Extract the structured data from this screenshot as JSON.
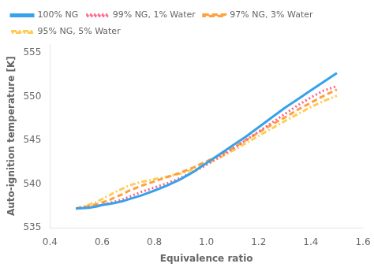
{
  "chart_data": {
    "type": "line",
    "xlabel": "Equivalence ratio",
    "ylabel": "Auto-ignition temperature [K]",
    "xlim": [
      0.4,
      1.6
    ],
    "ylim": [
      535,
      556
    ],
    "xticks": [
      0.4,
      0.6,
      0.8,
      {
        "value": 1.0,
        "label": "1.0"
      },
      1.2,
      1.4,
      1.6
    ],
    "yticks": [
      535,
      540,
      545,
      550,
      555
    ],
    "grid": false,
    "legend": "upper left",
    "x": [
      0.5,
      0.52,
      0.55,
      0.58,
      0.6,
      0.63,
      0.65,
      0.68,
      0.7,
      0.75,
      0.8,
      0.85,
      0.9,
      0.95,
      1.0,
      1.05,
      1.1,
      1.15,
      1.2,
      1.25,
      1.3,
      1.35,
      1.4,
      1.45,
      1.5
    ],
    "series": [
      {
        "name": "100% NG",
        "line_style": "solid",
        "values": [
          537.2,
          537.25,
          537.3,
          537.45,
          537.6,
          537.75,
          537.85,
          538.05,
          538.25,
          538.7,
          539.25,
          539.85,
          540.55,
          541.4,
          542.4,
          543.4,
          544.4,
          545.4,
          546.5,
          547.6,
          548.7,
          549.7,
          550.7,
          551.7,
          552.7
        ]
      },
      {
        "name": "99% NG, 1% Water",
        "line_style": "dotted",
        "values": [
          537.2,
          537.25,
          537.35,
          537.5,
          537.65,
          537.85,
          538.0,
          538.25,
          538.5,
          539.1,
          539.6,
          540.1,
          540.7,
          541.4,
          542.2,
          543.1,
          544.0,
          545.0,
          546.0,
          547.0,
          548.0,
          549.0,
          549.9,
          550.7,
          551.2
        ]
      },
      {
        "name": "97% NG, 3% Water",
        "line_style": "dashed",
        "values": [
          537.2,
          537.3,
          537.5,
          537.7,
          537.9,
          538.2,
          538.5,
          538.85,
          539.2,
          539.8,
          540.3,
          540.8,
          541.3,
          541.9,
          542.6,
          543.3,
          544.1,
          545.0,
          545.9,
          546.8,
          547.6,
          548.5,
          549.3,
          550.1,
          550.8
        ]
      },
      {
        "name": "95% NG, 5% Water",
        "line_style": "dashdot",
        "values": [
          537.2,
          537.4,
          537.65,
          537.95,
          538.3,
          538.75,
          539.1,
          539.5,
          539.8,
          540.25,
          540.55,
          540.85,
          541.2,
          541.7,
          542.3,
          543.0,
          543.8,
          544.65,
          545.5,
          546.35,
          547.2,
          548.0,
          548.8,
          549.5,
          550.1
        ]
      }
    ]
  }
}
